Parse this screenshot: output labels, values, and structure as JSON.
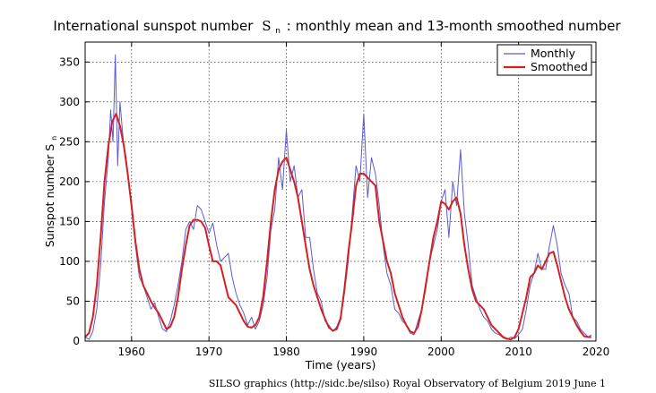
{
  "chart_data": {
    "type": "line",
    "title_main": "International sunspot number",
    "title_symbol": "S",
    "title_subscript": "n",
    "title_rest": ": monthly mean and 13-month smoothed number",
    "xlabel": "Time (years)",
    "ylabel_main": "Sunspot number S",
    "ylabel_subscript": "n",
    "xlim": [
      1954,
      2020
    ],
    "ylim": [
      0,
      375
    ],
    "x_ticks": [
      1960,
      1970,
      1980,
      1990,
      2000,
      2010,
      2020
    ],
    "y_ticks": [
      0,
      50,
      100,
      150,
      200,
      250,
      300,
      350
    ],
    "grid": true,
    "legend_position": "top-right",
    "series": [
      {
        "name": "Monthly",
        "color": "#5b5bd6",
        "x": [
          1954.0,
          1954.5,
          1955.0,
          1955.5,
          1956.0,
          1956.5,
          1957.0,
          1957.3,
          1957.6,
          1957.9,
          1958.2,
          1958.5,
          1958.8,
          1959.0,
          1959.3,
          1959.6,
          1960.0,
          1960.5,
          1961.0,
          1961.5,
          1962.0,
          1962.5,
          1963.0,
          1963.5,
          1964.0,
          1964.5,
          1965.0,
          1965.5,
          1966.0,
          1966.5,
          1967.0,
          1967.5,
          1968.0,
          1968.5,
          1969.0,
          1969.5,
          1970.0,
          1970.5,
          1971.0,
          1971.5,
          1972.0,
          1972.5,
          1973.0,
          1973.5,
          1974.0,
          1974.5,
          1975.0,
          1975.5,
          1976.0,
          1976.5,
          1977.0,
          1977.5,
          1978.0,
          1978.5,
          1979.0,
          1979.5,
          1980.0,
          1980.5,
          1981.0,
          1981.5,
          1982.0,
          1982.5,
          1983.0,
          1983.5,
          1984.0,
          1984.5,
          1985.0,
          1985.5,
          1986.0,
          1986.5,
          1987.0,
          1987.5,
          1988.0,
          1988.5,
          1989.0,
          1989.5,
          1990.0,
          1990.5,
          1991.0,
          1991.5,
          1992.0,
          1992.5,
          1993.0,
          1993.5,
          1994.0,
          1994.5,
          1995.0,
          1995.5,
          1996.0,
          1996.5,
          1997.0,
          1997.5,
          1998.0,
          1998.5,
          1999.0,
          1999.5,
          2000.0,
          2000.5,
          2001.0,
          2001.5,
          2002.0,
          2002.5,
          2003.0,
          2003.5,
          2004.0,
          2004.5,
          2005.0,
          2005.5,
          2006.0,
          2006.5,
          2007.0,
          2007.5,
          2008.0,
          2008.5,
          2009.0,
          2009.5,
          2010.0,
          2010.5,
          2011.0,
          2011.5,
          2012.0,
          2012.5,
          2013.0,
          2013.5,
          2014.0,
          2014.5,
          2015.0,
          2015.5,
          2016.0,
          2016.5,
          2017.0,
          2017.5,
          2018.0,
          2018.5,
          2019.0,
          2019.4
        ],
        "values": [
          5,
          2,
          12,
          40,
          95,
          175,
          230,
          290,
          250,
          359,
          220,
          300,
          265,
          245,
          230,
          200,
          165,
          120,
          80,
          70,
          55,
          40,
          48,
          30,
          15,
          12,
          25,
          45,
          70,
          100,
          140,
          150,
          140,
          170,
          165,
          150,
          135,
          148,
          120,
          100,
          105,
          110,
          80,
          60,
          45,
          35,
          20,
          30,
          15,
          25,
          45,
          80,
          140,
          165,
          230,
          190,
          265,
          200,
          220,
          180,
          190,
          130,
          130,
          90,
          60,
          50,
          25,
          20,
          12,
          18,
          30,
          60,
          100,
          160,
          220,
          200,
          285,
          180,
          230,
          210,
          170,
          120,
          85,
          70,
          40,
          35,
          25,
          20,
          10,
          8,
          25,
          40,
          65,
          100,
          120,
          140,
          175,
          190,
          130,
          200,
          170,
          240,
          160,
          120,
          70,
          55,
          40,
          30,
          25,
          15,
          10,
          8,
          4,
          2,
          5,
          3,
          8,
          15,
          40,
          70,
          85,
          110,
          90,
          90,
          120,
          145,
          120,
          85,
          70,
          60,
          30,
          25,
          15,
          10,
          5,
          8
        ]
      },
      {
        "name": "Smoothed",
        "color": "#d42020",
        "x": [
          1954.0,
          1954.5,
          1955.0,
          1955.5,
          1956.0,
          1956.5,
          1957.0,
          1957.5,
          1958.0,
          1958.5,
          1959.0,
          1959.5,
          1960.0,
          1960.5,
          1961.0,
          1961.5,
          1962.0,
          1962.5,
          1963.0,
          1963.5,
          1964.0,
          1964.5,
          1965.0,
          1965.5,
          1966.0,
          1966.5,
          1967.0,
          1967.5,
          1968.0,
          1968.5,
          1969.0,
          1969.5,
          1970.0,
          1970.5,
          1971.0,
          1971.5,
          1972.0,
          1972.5,
          1973.0,
          1973.5,
          1974.0,
          1974.5,
          1975.0,
          1975.5,
          1976.0,
          1976.5,
          1977.0,
          1977.5,
          1978.0,
          1978.5,
          1979.0,
          1979.5,
          1980.0,
          1980.5,
          1981.0,
          1981.5,
          1982.0,
          1982.5,
          1983.0,
          1983.5,
          1984.0,
          1984.5,
          1985.0,
          1985.5,
          1986.0,
          1986.5,
          1987.0,
          1987.5,
          1988.0,
          1988.5,
          1989.0,
          1989.5,
          1990.0,
          1990.5,
          1991.0,
          1991.5,
          1992.0,
          1992.5,
          1993.0,
          1993.5,
          1994.0,
          1994.5,
          1995.0,
          1995.5,
          1996.0,
          1996.5,
          1997.0,
          1997.5,
          1998.0,
          1998.5,
          1999.0,
          1999.5,
          2000.0,
          2000.5,
          2001.0,
          2001.5,
          2002.0,
          2002.5,
          2003.0,
          2003.5,
          2004.0,
          2004.5,
          2005.0,
          2005.5,
          2006.0,
          2006.5,
          2007.0,
          2007.5,
          2008.0,
          2008.5,
          2009.0,
          2009.5,
          2010.0,
          2010.5,
          2011.0,
          2011.5,
          2012.0,
          2012.5,
          2013.0,
          2013.5,
          2014.0,
          2014.5,
          2015.0,
          2015.5,
          2016.0,
          2016.5,
          2017.0,
          2017.5,
          2018.0,
          2018.5,
          2019.0,
          2019.4
        ],
        "values": [
          5,
          10,
          30,
          70,
          130,
          200,
          245,
          275,
          285,
          270,
          245,
          210,
          170,
          125,
          90,
          70,
          60,
          50,
          42,
          35,
          25,
          15,
          18,
          30,
          55,
          90,
          120,
          145,
          152,
          152,
          150,
          142,
          120,
          100,
          100,
          95,
          75,
          55,
          50,
          45,
          35,
          25,
          18,
          17,
          20,
          30,
          55,
          100,
          150,
          190,
          215,
          225,
          230,
          215,
          200,
          180,
          150,
          120,
          90,
          70,
          55,
          40,
          28,
          17,
          13,
          15,
          28,
          65,
          110,
          150,
          195,
          210,
          210,
          205,
          200,
          195,
          150,
          125,
          100,
          85,
          60,
          45,
          30,
          20,
          12,
          10,
          18,
          40,
          70,
          100,
          130,
          150,
          175,
          172,
          165,
          175,
          180,
          160,
          120,
          90,
          65,
          50,
          45,
          40,
          30,
          20,
          15,
          10,
          5,
          3,
          2,
          5,
          15,
          35,
          55,
          80,
          85,
          95,
          90,
          100,
          110,
          112,
          95,
          75,
          55,
          40,
          30,
          20,
          12,
          6,
          5,
          5
        ]
      }
    ],
    "credit": "SILSO graphics (http://sidc.be/silso)  Royal Observatory of Belgium  2019 June 1"
  }
}
